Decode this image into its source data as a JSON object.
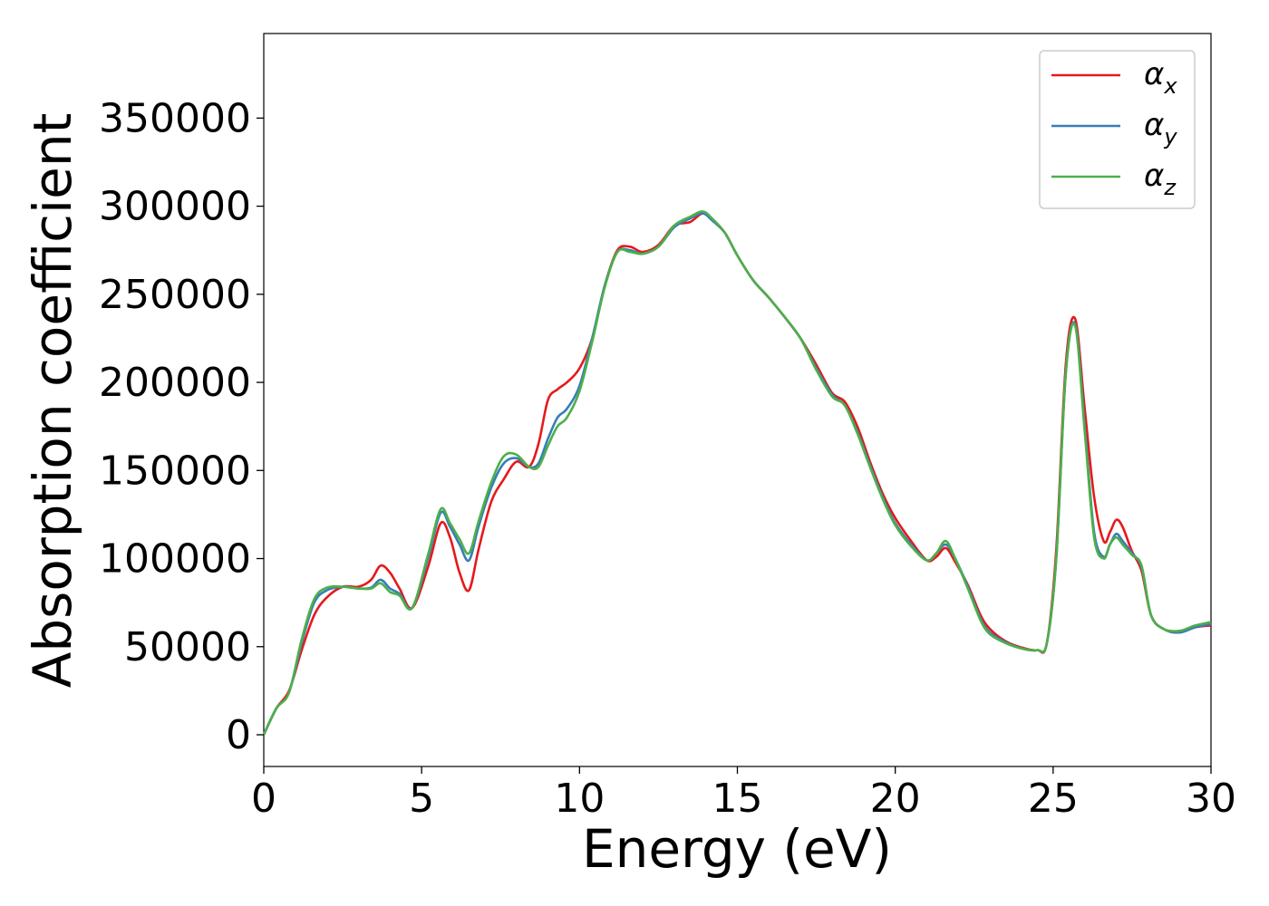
{
  "chart_data": {
    "type": "line",
    "title": "",
    "xlabel": "Energy (eV)",
    "ylabel": "Absorption coefficient",
    "xlim": [
      0,
      30
    ],
    "ylim": [
      -18000,
      398000
    ],
    "xticks": [
      "0",
      "5",
      "10",
      "15",
      "20",
      "25",
      "30"
    ],
    "yticks": [
      "0",
      "50000",
      "100000",
      "150000",
      "200000",
      "250000",
      "300000",
      "350000"
    ],
    "grid": false,
    "legend_position": "top-right",
    "series": [
      {
        "name": "αx",
        "legend_main": "α",
        "legend_sub": "x",
        "color": "#e41a1c",
        "x": [
          0,
          0.4,
          0.8,
          1.2,
          1.6,
          2.0,
          2.5,
          3.0,
          3.4,
          3.7,
          4.0,
          4.3,
          4.7,
          5.2,
          5.6,
          5.9,
          6.2,
          6.5,
          6.8,
          7.2,
          7.6,
          8.0,
          8.4,
          8.7,
          9.0,
          9.3,
          9.6,
          10.0,
          10.4,
          10.8,
          11.2,
          11.6,
          12.0,
          12.5,
          13.0,
          13.5,
          13.9,
          14.2,
          14.6,
          15.0,
          15.5,
          16.0,
          16.5,
          17.0,
          17.5,
          18.0,
          18.4,
          18.8,
          19.2,
          19.6,
          20.0,
          20.5,
          21.0,
          21.3,
          21.6,
          21.9,
          22.3,
          22.7,
          23.0,
          23.5,
          24.0,
          24.5,
          24.8,
          25.1,
          25.4,
          25.7,
          26.0,
          26.3,
          26.6,
          26.8,
          27.0,
          27.2,
          27.5,
          27.8,
          28.1,
          28.5,
          29.0,
          29.5,
          30.0
        ],
        "y": [
          0,
          15000,
          25000,
          48000,
          68000,
          78000,
          84000,
          84000,
          88000,
          96000,
          92000,
          83000,
          72000,
          95000,
          120000,
          112000,
          92000,
          82000,
          105000,
          132000,
          145000,
          155000,
          152000,
          165000,
          190000,
          196000,
          200000,
          208000,
          225000,
          255000,
          275000,
          277000,
          274000,
          278000,
          289000,
          291000,
          296000,
          292000,
          285000,
          272000,
          258000,
          248000,
          237000,
          225000,
          210000,
          194000,
          189000,
          175000,
          155000,
          137000,
          123000,
          110000,
          99000,
          101000,
          106000,
          98000,
          85000,
          68000,
          60000,
          53000,
          49500,
          48000,
          52000,
          105000,
          210000,
          236000,
          185000,
          135000,
          110000,
          115000,
          122000,
          118000,
          104000,
          93000,
          68000,
          60000,
          58000,
          61000,
          62000
        ]
      },
      {
        "name": "αy",
        "legend_main": "α",
        "legend_sub": "y",
        "color": "#377eb8",
        "x": [
          0,
          0.4,
          0.8,
          1.2,
          1.6,
          2.0,
          2.5,
          3.0,
          3.4,
          3.7,
          4.0,
          4.3,
          4.7,
          5.2,
          5.6,
          5.9,
          6.2,
          6.5,
          6.8,
          7.2,
          7.6,
          8.0,
          8.4,
          8.7,
          9.0,
          9.3,
          9.6,
          10.0,
          10.4,
          10.8,
          11.2,
          11.6,
          12.0,
          12.5,
          13.0,
          13.5,
          13.9,
          14.2,
          14.6,
          15.0,
          15.5,
          16.0,
          16.5,
          17.0,
          17.5,
          18.0,
          18.4,
          18.8,
          19.2,
          19.6,
          20.0,
          20.5,
          21.0,
          21.3,
          21.6,
          21.9,
          22.3,
          22.7,
          23.0,
          23.5,
          24.0,
          24.5,
          24.8,
          25.1,
          25.4,
          25.7,
          26.0,
          26.3,
          26.6,
          26.8,
          27.0,
          27.2,
          27.5,
          27.8,
          28.1,
          28.5,
          29.0,
          29.5,
          30.0
        ],
        "y": [
          0,
          15000,
          24000,
          52000,
          75000,
          82000,
          84000,
          83000,
          83500,
          88000,
          83000,
          80000,
          72000,
          100000,
          126000,
          118000,
          108000,
          99000,
          118000,
          140000,
          154000,
          157000,
          152000,
          154000,
          168000,
          180000,
          185000,
          198000,
          225000,
          255000,
          274000,
          275000,
          273000,
          277000,
          288000,
          293000,
          296000,
          292000,
          285000,
          272000,
          258000,
          248000,
          237000,
          225000,
          208000,
          193000,
          187000,
          172000,
          153000,
          135000,
          120000,
          108000,
          99000,
          103000,
          108000,
          100000,
          84000,
          66000,
          58000,
          52500,
          49000,
          48000,
          52000,
          100000,
          205000,
          233000,
          175000,
          115000,
          101000,
          108000,
          114000,
          110000,
          103000,
          95000,
          68000,
          60000,
          58000,
          61000,
          63000
        ]
      },
      {
        "name": "αz",
        "legend_main": "α",
        "legend_sub": "z",
        "color": "#4daf4a",
        "x": [
          0,
          0.4,
          0.8,
          1.2,
          1.6,
          2.0,
          2.5,
          3.0,
          3.4,
          3.7,
          4.0,
          4.3,
          4.7,
          5.2,
          5.6,
          5.9,
          6.2,
          6.5,
          6.8,
          7.2,
          7.6,
          8.0,
          8.4,
          8.7,
          9.0,
          9.3,
          9.6,
          10.0,
          10.4,
          10.8,
          11.2,
          11.6,
          12.0,
          12.5,
          13.0,
          13.5,
          13.9,
          14.2,
          14.6,
          15.0,
          15.5,
          16.0,
          16.5,
          17.0,
          17.5,
          18.0,
          18.4,
          18.8,
          19.2,
          19.6,
          20.0,
          20.5,
          21.0,
          21.3,
          21.6,
          21.9,
          22.3,
          22.7,
          23.0,
          23.5,
          24.0,
          24.5,
          24.8,
          25.1,
          25.4,
          25.7,
          26.0,
          26.3,
          26.6,
          26.8,
          27.0,
          27.2,
          27.5,
          27.8,
          28.1,
          28.5,
          29.0,
          29.5,
          30.0
        ],
        "y": [
          0,
          15000,
          24000,
          54000,
          77000,
          83500,
          84000,
          83000,
          83000,
          86000,
          81000,
          79000,
          72000,
          102000,
          128000,
          120000,
          111000,
          103000,
          121000,
          143000,
          158000,
          159000,
          152000,
          152000,
          164000,
          175000,
          180000,
          195000,
          223000,
          254000,
          274000,
          274000,
          273000,
          277000,
          289000,
          294000,
          297000,
          293000,
          285000,
          272000,
          258000,
          248000,
          237000,
          225000,
          207000,
          192000,
          187000,
          171000,
          152000,
          134000,
          119000,
          107000,
          99000,
          103000,
          110000,
          100000,
          83000,
          65000,
          57000,
          52000,
          49000,
          48000,
          52000,
          100000,
          205000,
          232000,
          172000,
          112000,
          100000,
          108000,
          112000,
          108000,
          102000,
          96000,
          68000,
          60000,
          59000,
          62000,
          64000
        ]
      }
    ]
  }
}
